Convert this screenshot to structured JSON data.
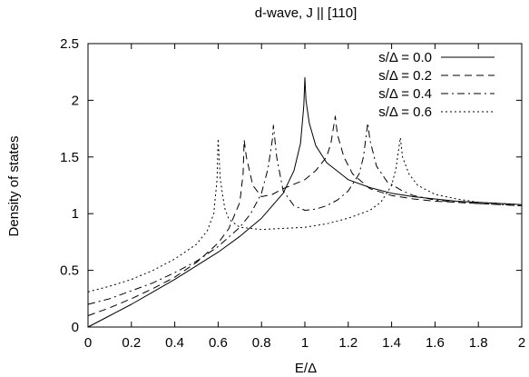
{
  "chart_data": {
    "type": "line",
    "title": "d-wave, J || [110]",
    "xlabel": "E/Δ",
    "ylabel": "Density of states",
    "xlim": [
      0,
      2
    ],
    "ylim": [
      0,
      2.5
    ],
    "xticks": [
      0,
      0.2,
      0.4,
      0.6,
      0.8,
      1,
      1.2,
      1.4,
      1.6,
      1.8,
      2
    ],
    "xtick_labels": [
      "0",
      "0.2",
      "0.4",
      "0.6",
      "0.8",
      "1",
      "1.2",
      "1.4",
      "1.6",
      "1.8",
      "2"
    ],
    "yticks": [
      0,
      0.5,
      1,
      1.5,
      2,
      2.5
    ],
    "ytick_labels": [
      "0",
      "0.5",
      "1",
      "1.5",
      "2",
      "2.5"
    ],
    "grid": false,
    "legend_position": "top-right",
    "series": [
      {
        "name": "s/Δ = 0.0",
        "dash": "solid",
        "x": [
          0,
          0.1,
          0.2,
          0.3,
          0.4,
          0.5,
          0.6,
          0.7,
          0.8,
          0.9,
          0.95,
          0.98,
          0.995,
          1.0,
          1.005,
          1.02,
          1.05,
          1.1,
          1.2,
          1.3,
          1.4,
          1.5,
          1.6,
          1.7,
          1.8,
          1.9,
          2.0
        ],
        "y": [
          0,
          0.1,
          0.2,
          0.31,
          0.42,
          0.54,
          0.66,
          0.8,
          0.96,
          1.18,
          1.38,
          1.62,
          1.95,
          2.2,
          2.0,
          1.8,
          1.6,
          1.45,
          1.3,
          1.23,
          1.18,
          1.15,
          1.13,
          1.11,
          1.1,
          1.09,
          1.08
        ]
      },
      {
        "name": "s/Δ = 0.2",
        "dash": "8,5",
        "x": [
          0,
          0.1,
          0.2,
          0.3,
          0.4,
          0.5,
          0.6,
          0.65,
          0.7,
          0.715,
          0.72,
          0.73,
          0.76,
          0.8,
          0.85,
          0.9,
          0.95,
          1.0,
          1.05,
          1.1,
          1.12,
          1.135,
          1.14,
          1.15,
          1.18,
          1.22,
          1.3,
          1.4,
          1.5,
          1.6,
          1.7,
          1.8,
          1.9,
          2.0
        ],
        "y": [
          0.1,
          0.17,
          0.25,
          0.34,
          0.44,
          0.57,
          0.74,
          0.87,
          1.1,
          1.35,
          1.65,
          1.5,
          1.25,
          1.15,
          1.17,
          1.22,
          1.26,
          1.3,
          1.38,
          1.5,
          1.62,
          1.8,
          1.86,
          1.7,
          1.5,
          1.35,
          1.22,
          1.16,
          1.13,
          1.11,
          1.1,
          1.09,
          1.08,
          1.07
        ]
      },
      {
        "name": "s/Δ = 0.4",
        "dash": "8,4,2,4",
        "x": [
          0,
          0.1,
          0.2,
          0.3,
          0.4,
          0.5,
          0.6,
          0.7,
          0.75,
          0.8,
          0.83,
          0.85,
          0.855,
          0.87,
          0.9,
          0.95,
          1.0,
          1.05,
          1.1,
          1.15,
          1.2,
          1.25,
          1.27,
          1.285,
          1.29,
          1.3,
          1.33,
          1.38,
          1.45,
          1.5,
          1.6,
          1.7,
          1.8,
          1.9,
          2.0
        ],
        "y": [
          0.2,
          0.25,
          0.32,
          0.39,
          0.48,
          0.58,
          0.71,
          0.88,
          1.0,
          1.18,
          1.4,
          1.65,
          1.78,
          1.5,
          1.2,
          1.07,
          1.03,
          1.04,
          1.07,
          1.12,
          1.2,
          1.35,
          1.5,
          1.72,
          1.8,
          1.65,
          1.42,
          1.28,
          1.2,
          1.16,
          1.12,
          1.1,
          1.09,
          1.08,
          1.07
        ]
      },
      {
        "name": "s/Δ = 0.6",
        "dash": "2,3",
        "x": [
          0,
          0.1,
          0.2,
          0.3,
          0.4,
          0.5,
          0.55,
          0.58,
          0.595,
          0.6,
          0.61,
          0.63,
          0.65,
          0.7,
          0.8,
          0.9,
          1.0,
          1.1,
          1.2,
          1.3,
          1.35,
          1.4,
          1.42,
          1.435,
          1.44,
          1.45,
          1.48,
          1.52,
          1.6,
          1.7,
          1.8,
          1.9,
          2.0
        ],
        "y": [
          0.31,
          0.36,
          0.42,
          0.5,
          0.6,
          0.73,
          0.85,
          1.0,
          1.3,
          1.66,
          1.3,
          1.05,
          0.95,
          0.88,
          0.86,
          0.87,
          0.88,
          0.91,
          0.96,
          1.03,
          1.1,
          1.25,
          1.4,
          1.6,
          1.67,
          1.5,
          1.35,
          1.25,
          1.17,
          1.13,
          1.1,
          1.09,
          1.08
        ]
      }
    ]
  }
}
